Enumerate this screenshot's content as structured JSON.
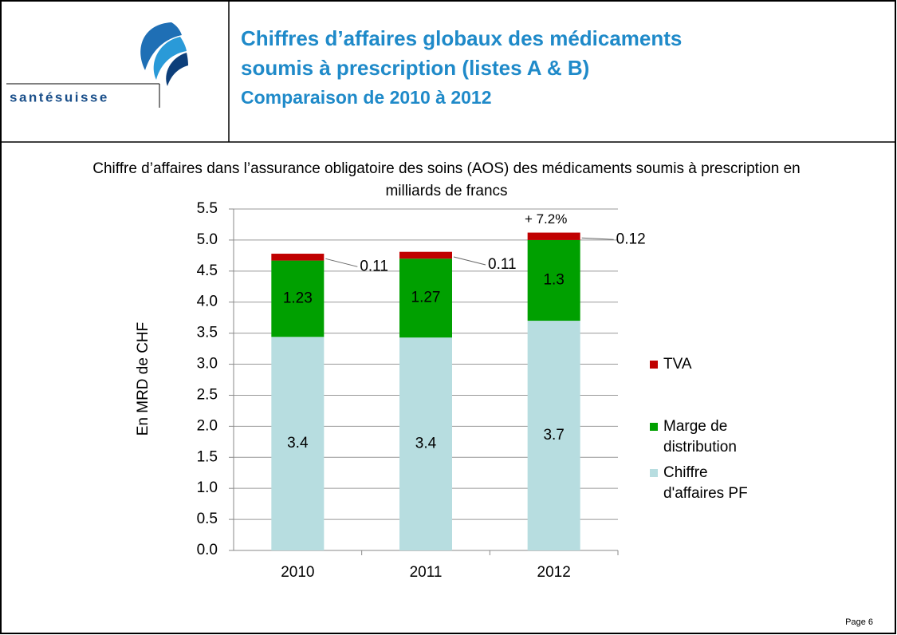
{
  "header": {
    "logo": "santésuisse",
    "title_lines": [
      "Chiffres d’affaires globaux des médicaments",
      "soumis à prescription (listes A & B)"
    ],
    "subtitle": "Comparaison de 2010 à 2012"
  },
  "footer": {
    "page": "Page 6"
  },
  "chart_data": {
    "type": "stacked_bar",
    "title": "Chiffre d’affaires dans l’assurance obligatoire des soins (AOS) des médicaments soumis à prescription en milliards de francs",
    "ylabel": "En MRD de CHF",
    "categories": [
      "2010",
      "2011",
      "2012"
    ],
    "series": [
      {
        "name": "Chiffre d'affaires PF",
        "color": "#b7dde0",
        "values": [
          3.44,
          3.43,
          3.7
        ],
        "value_labels": [
          "3.4",
          "3.4",
          "3.7"
        ]
      },
      {
        "name": "Marge de distribution",
        "color": "#00a000",
        "values": [
          1.23,
          1.27,
          1.3
        ]
      },
      {
        "name": "TVA",
        "color": "#c00000",
        "values": [
          0.11,
          0.11,
          0.12
        ]
      }
    ],
    "annotation": "+ 7.2%",
    "ylim": [
      0,
      5.5
    ],
    "yticks": [
      {
        "value": 0,
        "label": "0.0"
      },
      0.5,
      {
        "value": 1,
        "label": "1.0"
      },
      1.5,
      {
        "value": 2,
        "label": "2.0"
      },
      2.5,
      {
        "value": 3,
        "label": "3.0"
      },
      3.5,
      {
        "value": 4,
        "label": "4.0"
      },
      4.5,
      {
        "value": 5,
        "label": "5.0"
      },
      5.5
    ],
    "grid": true,
    "legend": "right"
  }
}
